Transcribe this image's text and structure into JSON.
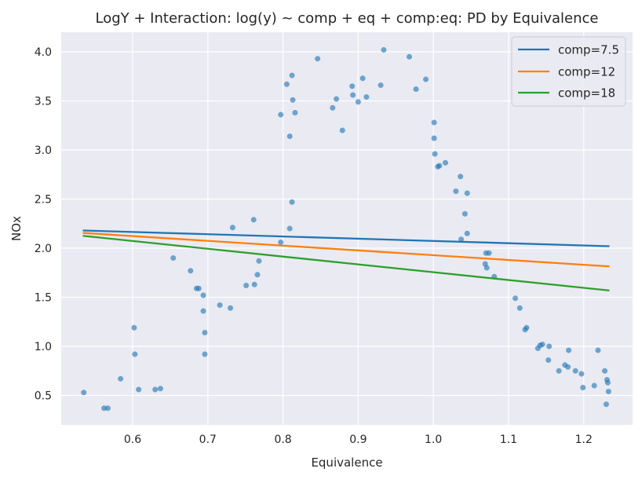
{
  "chart_data": {
    "type": "scatter",
    "title": "LogY + Interaction: log(y) ~ comp + eq + comp:eq: PD by Equivalence",
    "xlabel": "Equivalence",
    "ylabel": "NOx",
    "xlim": [
      0.505,
      1.265
    ],
    "ylim": [
      0.2,
      4.2
    ],
    "xticks": [
      "0.6",
      "0.7",
      "0.8",
      "0.9",
      "1.0",
      "1.1",
      "1.2"
    ],
    "yticks": [
      "0.5",
      "1.0",
      "1.5",
      "2.0",
      "2.5",
      "3.0",
      "3.5",
      "4.0"
    ],
    "grid": true,
    "legend_position": "top-right",
    "scatter_color": "#1f77b4",
    "points": [
      [
        0.535,
        0.53
      ],
      [
        0.562,
        0.37
      ],
      [
        0.567,
        0.37
      ],
      [
        0.584,
        0.67
      ],
      [
        0.602,
        1.19
      ],
      [
        0.603,
        0.92
      ],
      [
        0.608,
        0.56
      ],
      [
        0.63,
        0.56
      ],
      [
        0.637,
        0.57
      ],
      [
        0.654,
        1.9
      ],
      [
        0.677,
        1.77
      ],
      [
        0.685,
        1.59
      ],
      [
        0.688,
        1.59
      ],
      [
        0.694,
        1.52
      ],
      [
        0.694,
        1.36
      ],
      [
        0.696,
        1.14
      ],
      [
        0.696,
        0.92
      ],
      [
        0.716,
        1.42
      ],
      [
        0.73,
        1.39
      ],
      [
        0.733,
        2.21
      ],
      [
        0.751,
        1.62
      ],
      [
        0.761,
        2.29
      ],
      [
        0.762,
        1.63
      ],
      [
        0.766,
        1.73
      ],
      [
        0.768,
        1.87
      ],
      [
        0.797,
        2.06
      ],
      [
        0.797,
        3.36
      ],
      [
        0.805,
        3.67
      ],
      [
        0.809,
        2.2
      ],
      [
        0.809,
        3.14
      ],
      [
        0.812,
        2.47
      ],
      [
        0.812,
        3.76
      ],
      [
        0.813,
        3.51
      ],
      [
        0.816,
        3.38
      ],
      [
        0.846,
        3.93
      ],
      [
        0.866,
        3.43
      ],
      [
        0.871,
        3.52
      ],
      [
        0.879,
        3.2
      ],
      [
        0.892,
        3.65
      ],
      [
        0.893,
        3.56
      ],
      [
        0.9,
        3.49
      ],
      [
        0.906,
        3.73
      ],
      [
        0.911,
        3.54
      ],
      [
        0.93,
        3.66
      ],
      [
        0.934,
        4.02
      ],
      [
        0.968,
        3.95
      ],
      [
        0.977,
        3.62
      ],
      [
        0.99,
        3.72
      ],
      [
        1.001,
        3.28
      ],
      [
        1.001,
        3.12
      ],
      [
        1.002,
        2.96
      ],
      [
        1.006,
        2.83
      ],
      [
        1.008,
        2.84
      ],
      [
        1.016,
        2.87
      ],
      [
        1.03,
        2.58
      ],
      [
        1.036,
        2.73
      ],
      [
        1.037,
        2.09
      ],
      [
        1.042,
        2.35
      ],
      [
        1.045,
        2.15
      ],
      [
        1.045,
        2.56
      ],
      [
        1.069,
        1.84
      ],
      [
        1.07,
        1.95
      ],
      [
        1.071,
        1.8
      ],
      [
        1.074,
        1.95
      ],
      [
        1.081,
        1.71
      ],
      [
        1.109,
        1.49
      ],
      [
        1.115,
        1.39
      ],
      [
        1.122,
        1.17
      ],
      [
        1.124,
        1.19
      ],
      [
        1.139,
        0.98
      ],
      [
        1.142,
        1.01
      ],
      [
        1.145,
        1.02
      ],
      [
        1.153,
        0.86
      ],
      [
        1.154,
        1.0
      ],
      [
        1.167,
        0.75
      ],
      [
        1.175,
        0.81
      ],
      [
        1.179,
        0.79
      ],
      [
        1.18,
        0.96
      ],
      [
        1.189,
        0.75
      ],
      [
        1.197,
        0.72
      ],
      [
        1.199,
        0.58
      ],
      [
        1.214,
        0.6
      ],
      [
        1.219,
        0.96
      ],
      [
        1.228,
        0.75
      ],
      [
        1.23,
        0.41
      ],
      [
        1.231,
        0.66
      ],
      [
        1.232,
        0.63
      ],
      [
        1.233,
        0.54
      ]
    ],
    "series": [
      {
        "name": "comp=7.5",
        "color": "#1f77b4",
        "x": [
          0.535,
          1.233
        ],
        "y": [
          2.18,
          2.02
        ]
      },
      {
        "name": "comp=12",
        "color": "#ff7f0e",
        "x": [
          0.535,
          1.233
        ],
        "y": [
          2.155,
          1.815
        ]
      },
      {
        "name": "comp=18",
        "color": "#2ca02c",
        "x": [
          0.535,
          1.233
        ],
        "y": [
          2.125,
          1.57
        ]
      }
    ]
  }
}
